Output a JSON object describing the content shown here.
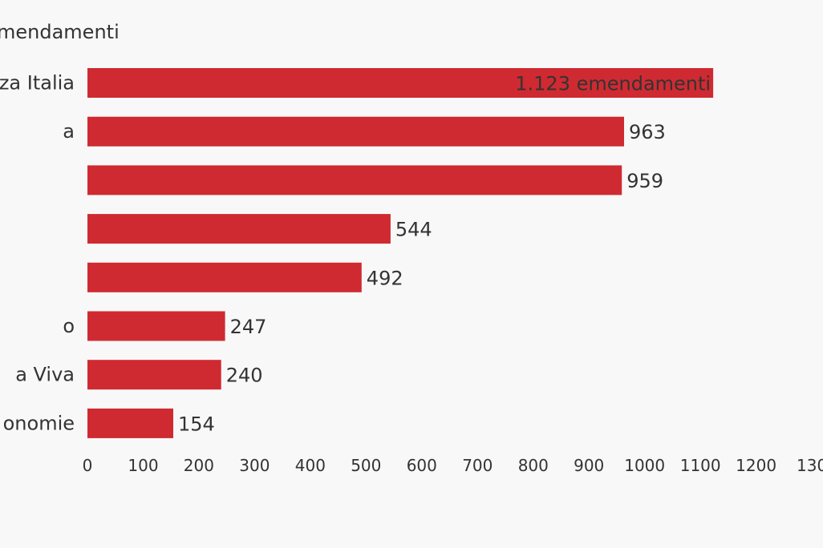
{
  "chart_data": {
    "type": "bar",
    "orientation": "horizontal",
    "header_label": "mendamenti",
    "first_value_label": "1.123 emendamenti",
    "categories": [
      "za Italia",
      "a",
      "",
      "",
      "",
      "o",
      "a Viva",
      "onomie"
    ],
    "values": [
      1123,
      963,
      959,
      544,
      492,
      247,
      240,
      154
    ],
    "value_labels": [
      "1.123 emendamenti",
      "963",
      "959",
      "544",
      "492",
      "247",
      "240",
      "154"
    ],
    "x_ticks": [
      "0",
      "100",
      "200",
      "300",
      "400",
      "500",
      "600",
      "700",
      "800",
      "900",
      "1000",
      "1100",
      "1200",
      "130"
    ],
    "xlim": [
      0,
      1300
    ],
    "grid": false,
    "legend": "none",
    "colors": {
      "bar": "#cf2a31",
      "text": "#333333",
      "background": "#f8f8f8"
    }
  }
}
